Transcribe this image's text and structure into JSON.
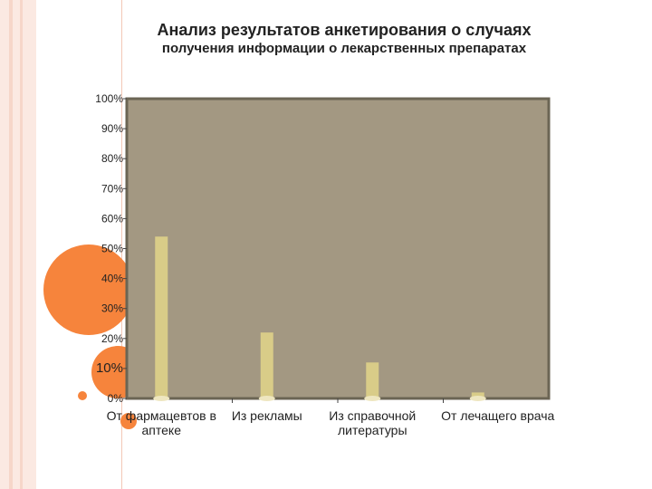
{
  "title": {
    "line1": "Анализ результатов анкетирования о случаях",
    "line2": "получения информации о лекарственных препаратах"
  },
  "chart_data": {
    "type": "bar",
    "title": "Анализ результатов анкетирования о случаях получения информации о лекарственных препаратах",
    "categories": [
      [
        "От фармацевтов в",
        "аптеке"
      ],
      [
        "Из рекламы"
      ],
      [
        "Из справочной",
        "литературы"
      ],
      [
        "От лечащего врача"
      ]
    ],
    "values": [
      54,
      22,
      12,
      2
    ],
    "y_ticks": [
      "0%",
      "10%",
      "20%",
      "30%",
      "40%",
      "50%",
      "60%",
      "70%",
      "80%",
      "90%",
      "100%"
    ],
    "ylim": [
      0,
      100
    ],
    "grid": false,
    "legend": "none",
    "colors": {
      "plot_bg": "#a39882",
      "bar": "#d9cc88",
      "frame": "#6b6554",
      "accent": "#f6843c"
    }
  }
}
